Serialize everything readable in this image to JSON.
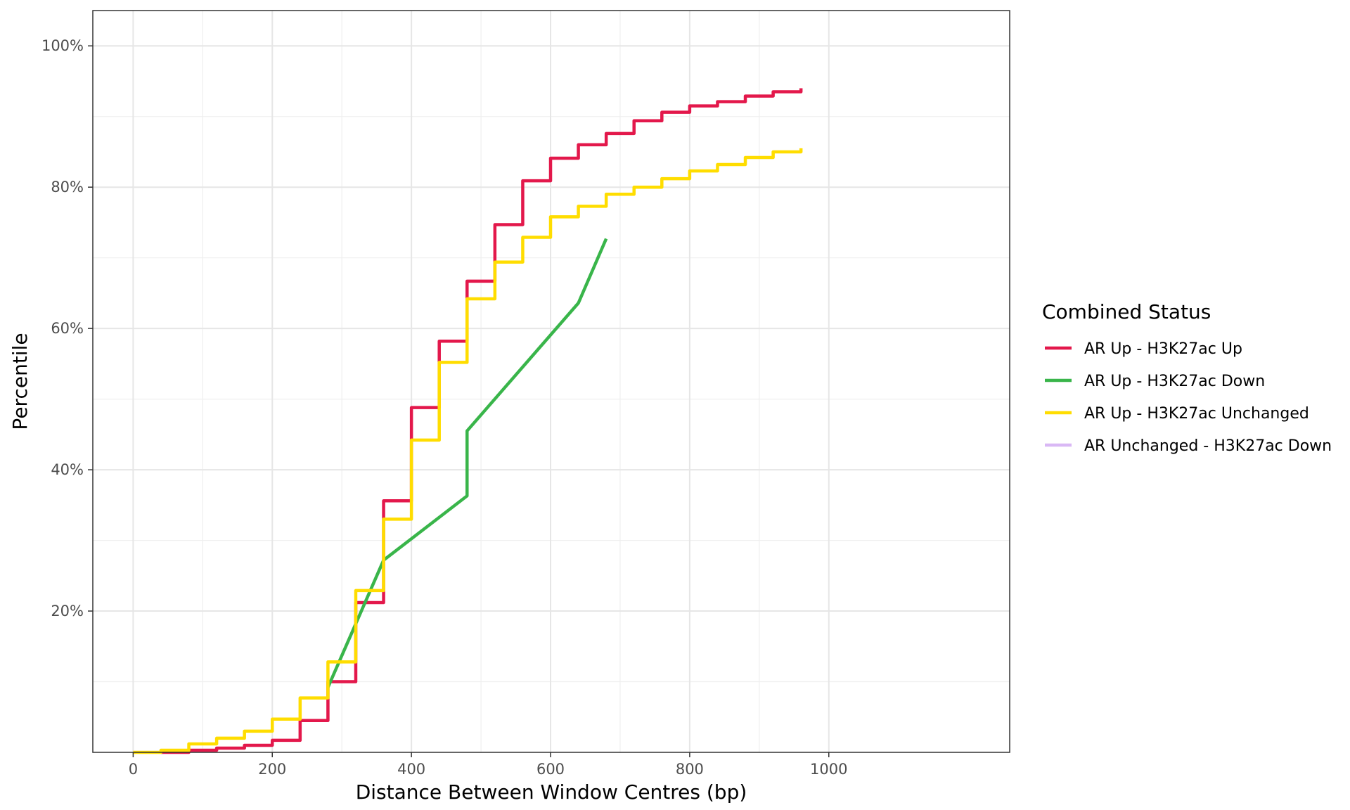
{
  "chart_data": {
    "type": "line",
    "xlabel": "Distance Between Window Centres (bp)",
    "ylabel": "Percentile",
    "xlim": [
      -58,
      1260
    ],
    "ylim": [
      0,
      1.05
    ],
    "x_ticks": [
      0,
      200,
      400,
      600,
      800,
      1000
    ],
    "x_tick_labels": [
      "0",
      "200",
      "400",
      "600",
      "800",
      "1000"
    ],
    "y_ticks": [
      0.2,
      0.4,
      0.6,
      0.8,
      1.0
    ],
    "y_tick_labels": [
      "20%",
      "40%",
      "60%",
      "80%",
      "100%"
    ],
    "grid": true,
    "legend": {
      "title": "Combined Status",
      "position": "right"
    },
    "series": [
      {
        "name": "AR Up - H3K27ac Up",
        "color": "#E3184B",
        "step": true,
        "points": [
          [
            40,
            0
          ],
          [
            80,
            0.003
          ],
          [
            120,
            0.006
          ],
          [
            160,
            0.01
          ],
          [
            200,
            0.017
          ],
          [
            240,
            0.045
          ],
          [
            280,
            0.1
          ],
          [
            320,
            0.212
          ],
          [
            360,
            0.356
          ],
          [
            400,
            0.488
          ],
          [
            440,
            0.582
          ],
          [
            480,
            0.667
          ],
          [
            520,
            0.747
          ],
          [
            560,
            0.809
          ],
          [
            600,
            0.841
          ],
          [
            640,
            0.86
          ],
          [
            680,
            0.876
          ],
          [
            720,
            0.894
          ],
          [
            760,
            0.906
          ],
          [
            800,
            0.915
          ],
          [
            840,
            0.921
          ],
          [
            880,
            0.929
          ],
          [
            920,
            0.935
          ],
          [
            960,
            0.94
          ]
        ],
        "jumps": [
          [
            160,
            0.017
          ],
          [
            200,
            0.045
          ],
          [
            240,
            0.1
          ],
          [
            280,
            0.212
          ],
          [
            320,
            0.352
          ],
          [
            360,
            0.485
          ],
          [
            400,
            0.58
          ],
          [
            440,
            0.665
          ],
          [
            480,
            0.744
          ],
          [
            520,
            0.807
          ],
          [
            560,
            0.839
          ],
          [
            600,
            0.857
          ],
          [
            640,
            0.874
          ],
          [
            680,
            0.891
          ],
          [
            720,
            0.903
          ],
          [
            760,
            0.913
          ],
          [
            800,
            0.918
          ],
          [
            840,
            0.928
          ],
          [
            880,
            0.933
          ],
          [
            920,
            0.937
          ]
        ]
      },
      {
        "name": "AR Up - H3K27ac Down",
        "color": "#39B54A",
        "step": false,
        "points": [
          [
            280,
            0.092
          ],
          [
            360,
            0.272
          ],
          [
            480,
            0.363
          ],
          [
            480,
            0.455
          ],
          [
            640,
            0.636
          ],
          [
            680,
            0.727
          ]
        ]
      },
      {
        "name": "AR Up - H3K27ac Unchanged",
        "color": "#FFDD00",
        "step": true,
        "points": [
          [
            0,
            0
          ],
          [
            40,
            0.003
          ],
          [
            80,
            0.012
          ],
          [
            120,
            0.02
          ],
          [
            160,
            0.03
          ],
          [
            200,
            0.047
          ],
          [
            240,
            0.077
          ],
          [
            280,
            0.128
          ],
          [
            320,
            0.229
          ],
          [
            360,
            0.33
          ],
          [
            400,
            0.442
          ],
          [
            440,
            0.552
          ],
          [
            480,
            0.642
          ],
          [
            520,
            0.694
          ],
          [
            560,
            0.729
          ],
          [
            600,
            0.758
          ],
          [
            640,
            0.773
          ],
          [
            680,
            0.79
          ],
          [
            720,
            0.8
          ],
          [
            760,
            0.812
          ],
          [
            800,
            0.823
          ],
          [
            840,
            0.832
          ],
          [
            880,
            0.842
          ],
          [
            920,
            0.85
          ],
          [
            960,
            0.855
          ]
        ],
        "jumps": []
      },
      {
        "name": "AR Unchanged - H3K27ac Down",
        "color": "#D9B8F5",
        "step": false,
        "points": []
      }
    ]
  }
}
